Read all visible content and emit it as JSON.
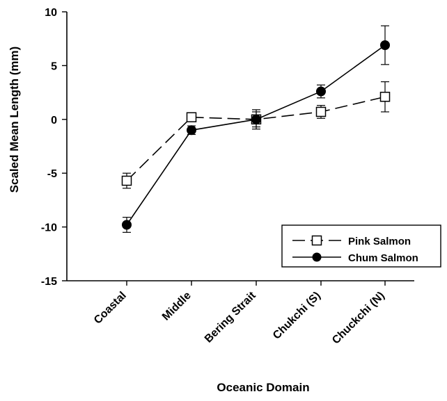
{
  "chart_data": {
    "type": "line",
    "title": "",
    "xlabel": "Oceanic Domain",
    "ylabel": "Scaled Mean Length (mm)",
    "ylim": [
      -15,
      10
    ],
    "yticks": [
      -15,
      -10,
      -5,
      0,
      5,
      10
    ],
    "grid": false,
    "legend_position": "lower-right",
    "categories": [
      "Coastal",
      "Middle",
      "Bering Strait",
      "Chukchi (S)",
      "Chuckchi (N)"
    ],
    "series": [
      {
        "name": "Pink Salmon",
        "marker": "open-square",
        "line_style": "dashed",
        "values": [
          -5.7,
          0.2,
          0.0,
          0.7,
          2.1
        ],
        "error": [
          0.7,
          0.4,
          0.9,
          0.6,
          1.4
        ]
      },
      {
        "name": "Chum Salmon",
        "marker": "filled-circle",
        "line_style": "solid",
        "values": [
          -9.8,
          -1.0,
          0.0,
          2.6,
          6.9
        ],
        "error": [
          0.7,
          0.4,
          0.7,
          0.6,
          1.8
        ]
      }
    ]
  }
}
